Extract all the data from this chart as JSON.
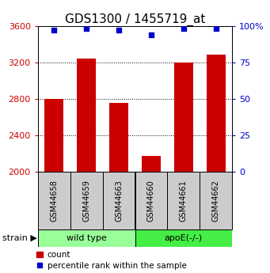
{
  "title": "GDS1300 / 1455719_at",
  "samples": [
    "GSM44658",
    "GSM44659",
    "GSM44663",
    "GSM44660",
    "GSM44661",
    "GSM44662"
  ],
  "counts": [
    2800,
    3240,
    2760,
    2180,
    3200,
    3290
  ],
  "percentiles": [
    97,
    98,
    97,
    94,
    98,
    98
  ],
  "ylim_left": [
    2000,
    3600
  ],
  "ylim_right": [
    0,
    100
  ],
  "yticks_left": [
    2000,
    2400,
    2800,
    3200,
    3600
  ],
  "yticks_right": [
    0,
    25,
    50,
    75,
    100
  ],
  "groups": [
    {
      "label": "wild type",
      "start": 0,
      "end": 3,
      "color": "#99ff99"
    },
    {
      "label": "apoE(-/-)",
      "start": 3,
      "end": 6,
      "color": "#44ee44"
    }
  ],
  "bar_color": "#cc0000",
  "dot_color": "#0000cc",
  "bar_width": 0.6,
  "left_tick_color": "#cc0000",
  "right_tick_color": "#0000cc",
  "title_fontsize": 11,
  "tick_fontsize": 8,
  "sample_fontsize": 7,
  "legend_fontsize": 7.5,
  "strain_label": "strain",
  "sample_box_color": "#cccccc"
}
